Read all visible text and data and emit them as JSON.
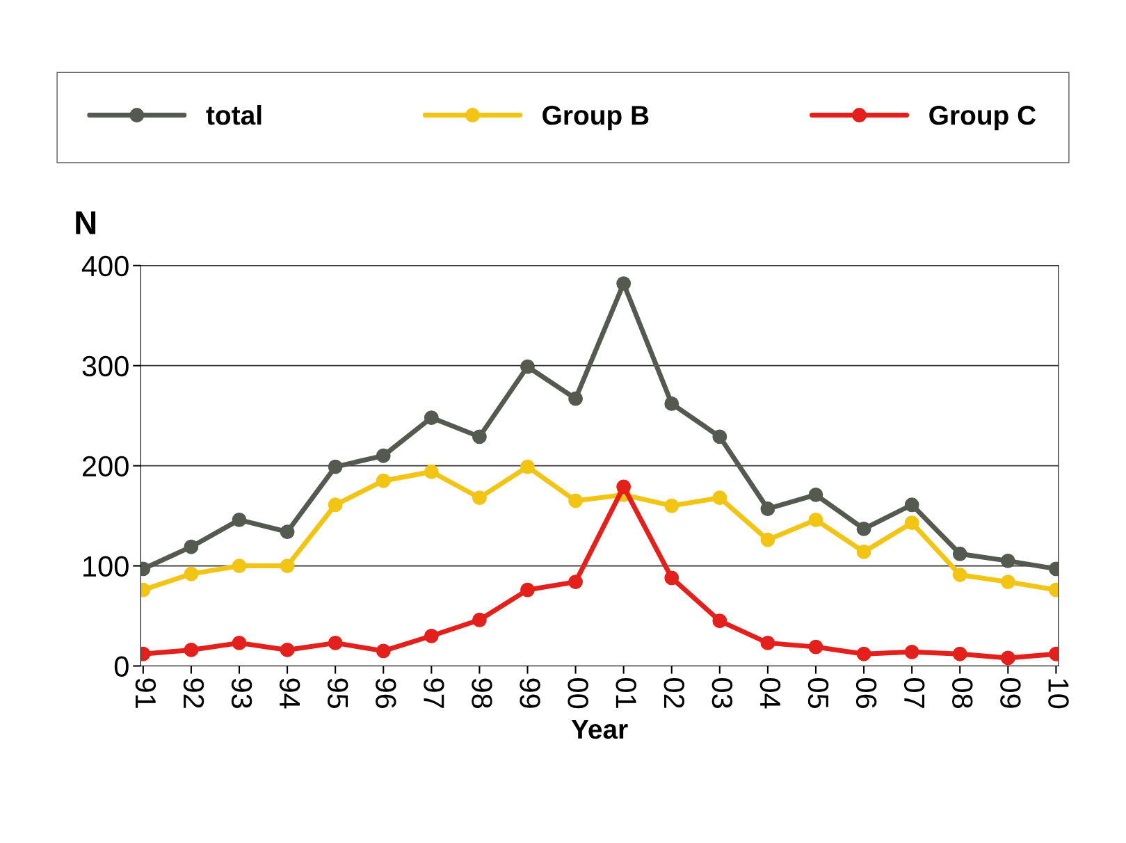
{
  "chart_data": {
    "type": "line",
    "xlabel": "Year",
    "ylabel": "N",
    "categories": [
      "91",
      "92",
      "93",
      "94",
      "95",
      "96",
      "97",
      "98",
      "99",
      "00",
      "01",
      "02",
      "03",
      "04",
      "05",
      "06",
      "07",
      "08",
      "09",
      "10"
    ],
    "series": [
      {
        "name": "total",
        "color": "#555a50",
        "values": [
          97,
          119,
          146,
          134,
          199,
          210,
          248,
          229,
          299,
          267,
          382,
          262,
          229,
          157,
          171,
          137,
          161,
          112,
          105,
          97
        ]
      },
      {
        "name": "Group B",
        "color": "#f2c414",
        "values": [
          76,
          92,
          100,
          100,
          161,
          185,
          194,
          168,
          199,
          165,
          171,
          160,
          168,
          126,
          146,
          114,
          143,
          91,
          84,
          76
        ]
      },
      {
        "name": "Group C",
        "color": "#e3201b",
        "values": [
          12,
          16,
          23,
          16,
          23,
          15,
          30,
          46,
          76,
          84,
          179,
          88,
          45,
          23,
          19,
          12,
          14,
          12,
          8,
          12
        ]
      }
    ],
    "ylim": [
      0,
      400
    ],
    "yticks": [
      0,
      100,
      200,
      300,
      400
    ],
    "grid": "y",
    "legend": "top",
    "marker": "circle",
    "line_style": "solid"
  }
}
